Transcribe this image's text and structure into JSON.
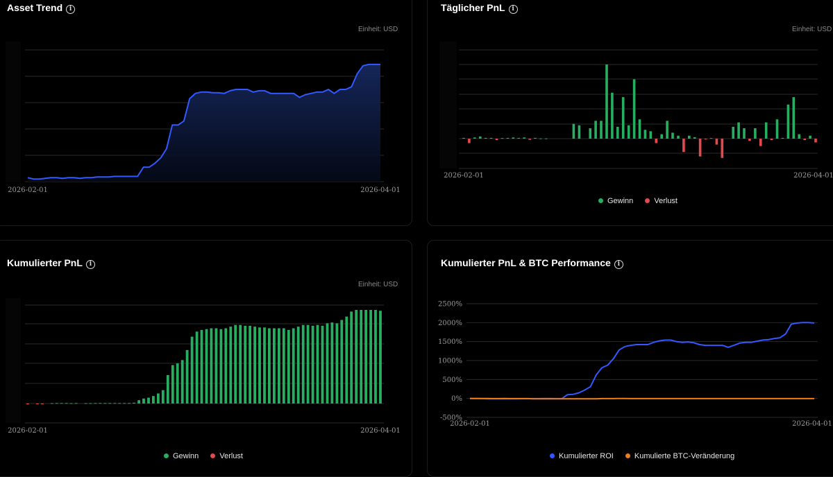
{
  "colors": {
    "gain": "#27ae60",
    "loss": "#e5484d",
    "blue": "#3358ff",
    "orange": "#f07d1a",
    "grid": "#2a2a2a"
  },
  "legend": {
    "gain": "Gewinn",
    "loss": "Verlust",
    "roi": "Kumulierter ROI",
    "btc": "Kumulierte BTC-Veränderung"
  },
  "chart_data": [
    {
      "id": "asset-trend",
      "type": "area",
      "title": "Asset Trend",
      "unit_label": "Einheit: USD",
      "x_labels": [
        "2026-02-01",
        "2026-04-01"
      ],
      "y_labels_visible": false,
      "grid": true,
      "values": [
        3,
        2,
        2,
        2.5,
        3,
        3,
        2.5,
        3,
        3,
        2.5,
        3,
        3,
        3.5,
        3.5,
        3.5,
        4,
        4,
        4,
        4,
        4,
        11,
        11,
        14,
        18,
        25,
        43,
        43,
        46,
        63,
        67,
        68,
        68,
        67.5,
        67.5,
        67,
        69,
        70,
        70,
        70,
        68,
        69,
        69,
        67,
        67,
        67,
        67,
        67,
        64,
        66,
        67,
        68,
        68,
        70,
        67,
        70,
        70,
        72,
        82,
        88,
        89,
        89,
        89
      ]
    },
    {
      "id": "daily-pnl",
      "type": "bar",
      "title": "Täglicher PnL",
      "unit_label": "Einheit: USD",
      "x_labels": [
        "2026-02-01",
        "2026-04-01"
      ],
      "y_labels_visible": false,
      "grid": true,
      "values": [
        0.5,
        -3,
        0.8,
        1.5,
        0.5,
        0.5,
        -1,
        0.4,
        0.5,
        0.8,
        0.5,
        0.8,
        -0.8,
        0.5,
        0.2,
        0.2,
        0,
        0,
        0,
        0,
        10,
        9,
        0,
        7,
        12,
        12,
        50,
        31,
        8,
        28,
        9,
        40,
        13,
        6,
        5,
        -3,
        3,
        12,
        4,
        2,
        -9,
        2,
        1,
        -12,
        -0.5,
        0.4,
        -4,
        -13,
        0,
        8,
        11,
        7,
        -1.5,
        7,
        -5,
        11,
        -1,
        13,
        0.5,
        23,
        28,
        3,
        -1,
        2,
        -2.5
      ]
    },
    {
      "id": "cumulative-pnl",
      "type": "bar",
      "title": "Kumulierter PnL",
      "unit_label": "Einheit: USD",
      "x_labels": [
        "2026-02-01",
        "2026-04-01"
      ],
      "y_labels_visible": false,
      "grid": true,
      "values": [
        -0.3,
        0,
        -0.3,
        -0.3,
        0,
        0.2,
        0.3,
        0.3,
        0.3,
        0.2,
        0.3,
        0,
        0.2,
        0.2,
        0.3,
        0.3,
        0.3,
        0.3,
        0.3,
        0.3,
        0.3,
        0.3,
        0.5,
        2,
        3,
        3.5,
        4.5,
        6,
        8,
        17,
        23,
        24,
        26,
        32,
        40,
        43,
        44,
        44.5,
        45,
        45,
        44.5,
        45,
        46,
        47,
        47,
        46.5,
        46.5,
        46,
        45.5,
        45.5,
        45,
        45,
        45,
        45,
        44,
        45,
        46,
        47,
        47,
        46.5,
        47,
        46.5,
        48,
        48.5,
        48,
        50,
        52,
        55,
        56,
        56,
        56,
        56,
        56,
        55.5
      ]
    },
    {
      "id": "cumulative-pnl-btc",
      "type": "line",
      "title": "Kumulierter PnL & BTC Performance",
      "x_labels": [
        "2026-02-01",
        "2026-04-01"
      ],
      "y_ticks": [
        "2500%",
        "2000%",
        "1500%",
        "1000%",
        "500%",
        "0%",
        "-500%"
      ],
      "ylim": [
        -500,
        2500
      ],
      "grid": true,
      "series": [
        {
          "name": "Kumulierter ROI",
          "values": [
            0,
            0,
            -5,
            -10,
            -10,
            -12,
            -12,
            -10,
            -10,
            -8,
            -8,
            -5,
            -5,
            0,
            0,
            -5,
            -5,
            100,
            110,
            150,
            220,
            310,
            620,
            810,
            880,
            1050,
            1280,
            1370,
            1400,
            1420,
            1420,
            1420,
            1480,
            1520,
            1540,
            1540,
            1500,
            1480,
            1490,
            1470,
            1420,
            1400,
            1400,
            1400,
            1400,
            1350,
            1400,
            1460,
            1480,
            1480,
            1510,
            1540,
            1550,
            1580,
            1600,
            1700,
            1960,
            1990,
            2000,
            2000,
            1990
          ]
        },
        {
          "name": "Kumulierte BTC-Veränderung",
          "values": [
            0,
            0,
            0,
            0,
            -5,
            -5,
            0,
            -5,
            -5,
            -5,
            -5,
            -10,
            -10,
            -10,
            -10,
            -10,
            -10,
            -10,
            -10,
            -10,
            -10,
            -10,
            -10,
            -5,
            -5,
            -5,
            0,
            0,
            -5,
            -5,
            -5,
            -5,
            -5,
            -5,
            -5,
            -5,
            -5,
            -5,
            -5,
            -5,
            -5,
            -5,
            -5,
            -5,
            -5,
            -5,
            -5,
            -5,
            -5,
            -5,
            -5,
            -5,
            -5,
            -5,
            -5,
            -5,
            -5,
            -5,
            -5,
            -5,
            -5
          ]
        }
      ]
    }
  ]
}
